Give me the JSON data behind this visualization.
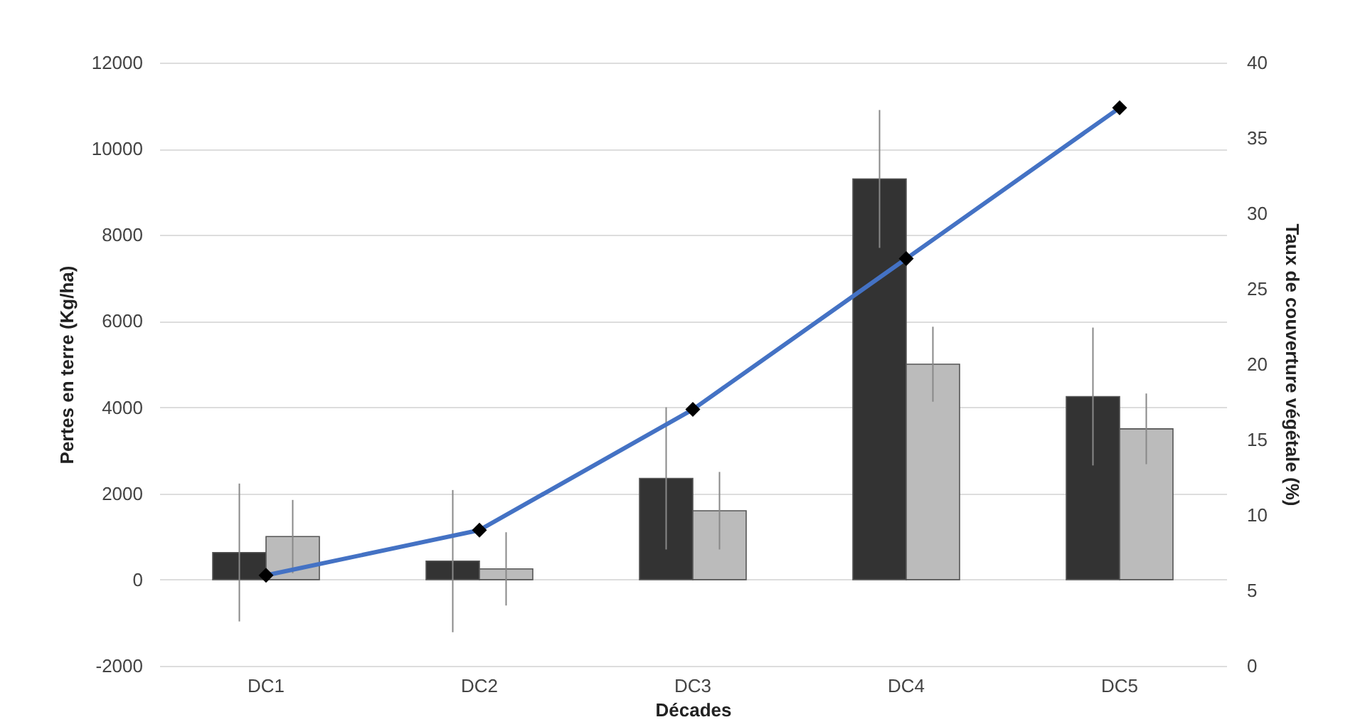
{
  "chart_data": {
    "type": "bar",
    "xlabel": "Décades",
    "ylabel": "Pertes en terre (Kg/ha)",
    "y2label": "Taux de couverture végétale  (%)",
    "categories": [
      "DC1",
      "DC2",
      "DC3",
      "DC4",
      "DC5"
    ],
    "series": [
      {
        "color": "#333333",
        "values": [
          630,
          430,
          2350,
          9300,
          4250
        ],
        "errors": [
          1600,
          1650,
          1650,
          1600,
          1600
        ]
      },
      {
        "color": "#bbbbbb",
        "values": [
          1000,
          250,
          1600,
          5000,
          3500
        ],
        "errors": [
          850,
          850,
          900,
          870,
          820
        ]
      },
      {
        "type": "line",
        "axis": "y2",
        "color": "#4472c4",
        "marker": "diamond",
        "values": [
          6,
          9,
          17,
          27,
          37
        ]
      }
    ],
    "ylim": [
      -2000,
      12000
    ],
    "yticks": [
      -2000,
      0,
      2000,
      4000,
      6000,
      8000,
      10000,
      12000
    ],
    "y2lim": [
      0,
      40
    ],
    "y2ticks": [
      0,
      5,
      10,
      15,
      20,
      25,
      30,
      35,
      40
    ],
    "grid": "y",
    "legend": false
  }
}
